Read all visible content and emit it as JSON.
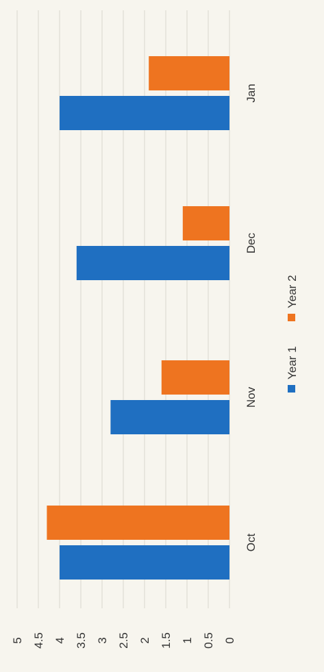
{
  "chart_data": {
    "type": "bar",
    "orientation": "vertical-bars (image rotated 90° clockwise)",
    "categories": [
      "Oct",
      "Nov",
      "Dec",
      "Jan"
    ],
    "series": [
      {
        "name": "Year 1",
        "color": "#1f6fc1",
        "values": [
          4.0,
          2.8,
          3.6,
          4.0
        ]
      },
      {
        "name": "Year 2",
        "color": "#ee7420",
        "values": [
          4.3,
          1.6,
          1.1,
          1.9
        ]
      }
    ],
    "yticks": [
      "0",
      "0.5",
      "1",
      "1.5",
      "2",
      "2.5",
      "3",
      "3.5",
      "4",
      "4.5",
      "5"
    ],
    "ylim": [
      0,
      5
    ],
    "grid": true,
    "legend_position": "bottom"
  }
}
